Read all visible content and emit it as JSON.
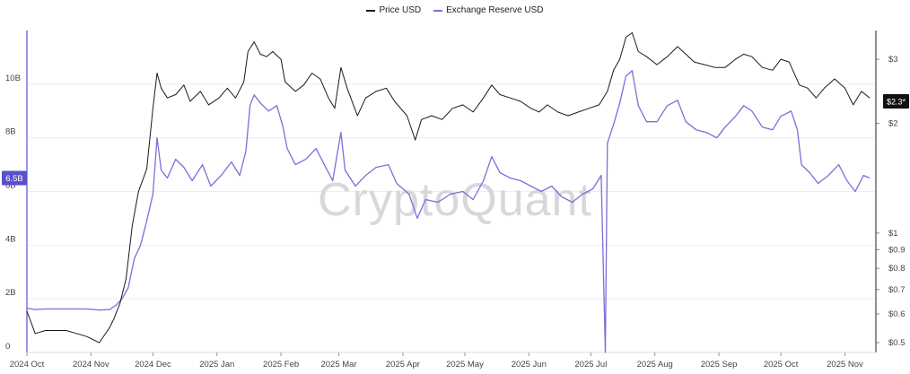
{
  "legend": {
    "price_label": "Price USD",
    "reserve_label": "Exchange Reserve USD"
  },
  "watermark": "CryptoQuant",
  "badges": {
    "left_value": "6.5B",
    "right_value": "$2.3*"
  },
  "colors": {
    "price": "#1a1a1a",
    "reserve": "#7b6fd6",
    "left_badge": "#5a4fcf",
    "right_badge": "#111111",
    "grid": "#eeeeee"
  },
  "chart_data": {
    "type": "line",
    "x_tick_labels": [
      "2024 Oct",
      "2024 Nov",
      "2024 Dec",
      "2025 Jan",
      "2025 Feb",
      "2025 Mar",
      "2025 Apr",
      "2025 May",
      "2025 Jun",
      "2025 Jul",
      "2025 Aug",
      "2025 Sep",
      "2025 Oct",
      "2025 Nov"
    ],
    "y_left_ticks": [
      "0",
      "2B",
      "4B",
      "6B",
      "8B",
      "10B"
    ],
    "y_left_range": [
      0,
      12
    ],
    "y_left_unit": "B USD",
    "y_right_ticks": [
      "$0.5",
      "$0.6",
      "$0.7",
      "$0.8",
      "$0.9",
      "$1",
      "$2",
      "$3"
    ],
    "y_right_scale": "log",
    "y_right_range": [
      0.47,
      3.6
    ],
    "grid": "horizontal",
    "legend_position": "top-center",
    "series": [
      {
        "name": "Price USD",
        "axis": "right",
        "points": [
          [
            "2024-10-01",
            0.61
          ],
          [
            "2024-10-05",
            0.53
          ],
          [
            "2024-10-10",
            0.54
          ],
          [
            "2024-10-15",
            0.54
          ],
          [
            "2024-10-20",
            0.54
          ],
          [
            "2024-10-25",
            0.53
          ],
          [
            "2024-10-30",
            0.52
          ],
          [
            "2024-11-05",
            0.5
          ],
          [
            "2024-11-10",
            0.55
          ],
          [
            "2024-11-12",
            0.58
          ],
          [
            "2024-11-15",
            0.64
          ],
          [
            "2024-11-18",
            0.75
          ],
          [
            "2024-11-21",
            1.05
          ],
          [
            "2024-11-24",
            1.3
          ],
          [
            "2024-11-28",
            1.5
          ],
          [
            "2024-12-01",
            2.2
          ],
          [
            "2024-12-03",
            2.75
          ],
          [
            "2024-12-05",
            2.5
          ],
          [
            "2024-12-08",
            2.35
          ],
          [
            "2024-12-12",
            2.4
          ],
          [
            "2024-12-16",
            2.55
          ],
          [
            "2024-12-19",
            2.3
          ],
          [
            "2024-12-24",
            2.45
          ],
          [
            "2024-12-28",
            2.25
          ],
          [
            "2025-01-02",
            2.35
          ],
          [
            "2025-01-06",
            2.5
          ],
          [
            "2025-01-10",
            2.35
          ],
          [
            "2025-01-14",
            2.6
          ],
          [
            "2025-01-16",
            3.15
          ],
          [
            "2025-01-19",
            3.35
          ],
          [
            "2025-01-22",
            3.1
          ],
          [
            "2025-01-25",
            3.05
          ],
          [
            "2025-01-28",
            3.15
          ],
          [
            "2025-02-01",
            3.0
          ],
          [
            "2025-02-03",
            2.6
          ],
          [
            "2025-02-08",
            2.45
          ],
          [
            "2025-02-12",
            2.55
          ],
          [
            "2025-02-16",
            2.75
          ],
          [
            "2025-02-20",
            2.65
          ],
          [
            "2025-02-24",
            2.35
          ],
          [
            "2025-02-27",
            2.2
          ],
          [
            "2025-03-02",
            2.85
          ],
          [
            "2025-03-05",
            2.5
          ],
          [
            "2025-03-10",
            2.1
          ],
          [
            "2025-03-14",
            2.35
          ],
          [
            "2025-03-19",
            2.45
          ],
          [
            "2025-03-24",
            2.5
          ],
          [
            "2025-03-28",
            2.3
          ],
          [
            "2025-04-03",
            2.1
          ],
          [
            "2025-04-07",
            1.8
          ],
          [
            "2025-04-10",
            2.05
          ],
          [
            "2025-04-15",
            2.1
          ],
          [
            "2025-04-20",
            2.05
          ],
          [
            "2025-04-25",
            2.2
          ],
          [
            "2025-04-30",
            2.25
          ],
          [
            "2025-05-05",
            2.15
          ],
          [
            "2025-05-10",
            2.35
          ],
          [
            "2025-05-14",
            2.55
          ],
          [
            "2025-05-18",
            2.4
          ],
          [
            "2025-05-23",
            2.35
          ],
          [
            "2025-05-28",
            2.3
          ],
          [
            "2025-06-02",
            2.2
          ],
          [
            "2025-06-06",
            2.15
          ],
          [
            "2025-06-10",
            2.25
          ],
          [
            "2025-06-15",
            2.15
          ],
          [
            "2025-06-20",
            2.1
          ],
          [
            "2025-06-25",
            2.15
          ],
          [
            "2025-06-30",
            2.2
          ],
          [
            "2025-07-05",
            2.25
          ],
          [
            "2025-07-09",
            2.45
          ],
          [
            "2025-07-12",
            2.8
          ],
          [
            "2025-07-15",
            3.0
          ],
          [
            "2025-07-18",
            3.45
          ],
          [
            "2025-07-21",
            3.55
          ],
          [
            "2025-07-24",
            3.15
          ],
          [
            "2025-07-28",
            3.05
          ],
          [
            "2025-08-02",
            2.9
          ],
          [
            "2025-08-07",
            3.05
          ],
          [
            "2025-08-12",
            3.25
          ],
          [
            "2025-08-16",
            3.1
          ],
          [
            "2025-08-20",
            2.95
          ],
          [
            "2025-08-25",
            2.9
          ],
          [
            "2025-08-30",
            2.85
          ],
          [
            "2025-09-04",
            2.85
          ],
          [
            "2025-09-09",
            3.0
          ],
          [
            "2025-09-13",
            3.1
          ],
          [
            "2025-09-17",
            3.05
          ],
          [
            "2025-09-22",
            2.85
          ],
          [
            "2025-09-27",
            2.8
          ],
          [
            "2025-10-01",
            3.0
          ],
          [
            "2025-10-05",
            2.95
          ],
          [
            "2025-10-10",
            2.55
          ],
          [
            "2025-10-14",
            2.5
          ],
          [
            "2025-10-18",
            2.35
          ],
          [
            "2025-10-22",
            2.5
          ],
          [
            "2025-10-27",
            2.65
          ],
          [
            "2025-11-01",
            2.5
          ],
          [
            "2025-11-05",
            2.25
          ],
          [
            "2025-11-09",
            2.45
          ],
          [
            "2025-11-13",
            2.35
          ]
        ]
      },
      {
        "name": "Exchange Reserve USD",
        "axis": "left",
        "points": [
          [
            "2024-10-01",
            1.65
          ],
          [
            "2024-10-05",
            1.6
          ],
          [
            "2024-10-10",
            1.62
          ],
          [
            "2024-10-20",
            1.62
          ],
          [
            "2024-10-30",
            1.62
          ],
          [
            "2024-11-05",
            1.58
          ],
          [
            "2024-11-10",
            1.6
          ],
          [
            "2024-11-13",
            1.75
          ],
          [
            "2024-11-16",
            2.0
          ],
          [
            "2024-11-19",
            2.4
          ],
          [
            "2024-11-22",
            3.5
          ],
          [
            "2024-11-25",
            4.0
          ],
          [
            "2024-11-28",
            4.9
          ],
          [
            "2024-12-01",
            5.9
          ],
          [
            "2024-12-03",
            8.0
          ],
          [
            "2024-12-05",
            6.8
          ],
          [
            "2024-12-08",
            6.5
          ],
          [
            "2024-12-12",
            7.2
          ],
          [
            "2024-12-16",
            6.9
          ],
          [
            "2024-12-20",
            6.4
          ],
          [
            "2024-12-25",
            7.0
          ],
          [
            "2024-12-29",
            6.2
          ],
          [
            "2025-01-03",
            6.6
          ],
          [
            "2025-01-08",
            7.1
          ],
          [
            "2025-01-12",
            6.6
          ],
          [
            "2025-01-15",
            7.5
          ],
          [
            "2025-01-17",
            9.2
          ],
          [
            "2025-01-19",
            9.6
          ],
          [
            "2025-01-22",
            9.3
          ],
          [
            "2025-01-26",
            9.0
          ],
          [
            "2025-01-30",
            9.2
          ],
          [
            "2025-02-02",
            8.4
          ],
          [
            "2025-02-04",
            7.6
          ],
          [
            "2025-02-08",
            7.0
          ],
          [
            "2025-02-13",
            7.2
          ],
          [
            "2025-02-18",
            7.6
          ],
          [
            "2025-02-22",
            7.0
          ],
          [
            "2025-02-26",
            6.4
          ],
          [
            "2025-03-02",
            8.2
          ],
          [
            "2025-03-04",
            6.8
          ],
          [
            "2025-03-09",
            6.2
          ],
          [
            "2025-03-14",
            6.6
          ],
          [
            "2025-03-19",
            6.9
          ],
          [
            "2025-03-25",
            7.0
          ],
          [
            "2025-03-29",
            6.3
          ],
          [
            "2025-04-04",
            5.9
          ],
          [
            "2025-04-08",
            5.0
          ],
          [
            "2025-04-12",
            5.7
          ],
          [
            "2025-04-18",
            5.6
          ],
          [
            "2025-04-24",
            5.9
          ],
          [
            "2025-04-30",
            6.0
          ],
          [
            "2025-05-05",
            5.7
          ],
          [
            "2025-05-10",
            6.4
          ],
          [
            "2025-05-14",
            7.3
          ],
          [
            "2025-05-18",
            6.7
          ],
          [
            "2025-05-23",
            6.5
          ],
          [
            "2025-05-28",
            6.4
          ],
          [
            "2025-06-02",
            6.2
          ],
          [
            "2025-06-07",
            6.0
          ],
          [
            "2025-06-12",
            6.2
          ],
          [
            "2025-06-17",
            5.8
          ],
          [
            "2025-06-22",
            5.6
          ],
          [
            "2025-06-27",
            5.9
          ],
          [
            "2025-07-02",
            6.1
          ],
          [
            "2025-07-06",
            6.6
          ],
          [
            "2025-07-08",
            0.0
          ],
          [
            "2025-07-09",
            7.8
          ],
          [
            "2025-07-12",
            8.5
          ],
          [
            "2025-07-15",
            9.3
          ],
          [
            "2025-07-18",
            10.3
          ],
          [
            "2025-07-21",
            10.5
          ],
          [
            "2025-07-24",
            9.2
          ],
          [
            "2025-07-28",
            8.6
          ],
          [
            "2025-08-02",
            8.6
          ],
          [
            "2025-08-07",
            9.2
          ],
          [
            "2025-08-12",
            9.4
          ],
          [
            "2025-08-16",
            8.6
          ],
          [
            "2025-08-21",
            8.3
          ],
          [
            "2025-08-26",
            8.2
          ],
          [
            "2025-08-31",
            8.0
          ],
          [
            "2025-09-04",
            8.4
          ],
          [
            "2025-09-09",
            8.8
          ],
          [
            "2025-09-13",
            9.2
          ],
          [
            "2025-09-17",
            9.0
          ],
          [
            "2025-09-22",
            8.4
          ],
          [
            "2025-09-27",
            8.3
          ],
          [
            "2025-10-01",
            8.8
          ],
          [
            "2025-10-06",
            9.0
          ],
          [
            "2025-10-09",
            8.3
          ],
          [
            "2025-10-11",
            7.0
          ],
          [
            "2025-10-15",
            6.7
          ],
          [
            "2025-10-19",
            6.3
          ],
          [
            "2025-10-24",
            6.6
          ],
          [
            "2025-10-29",
            7.0
          ],
          [
            "2025-11-02",
            6.4
          ],
          [
            "2025-11-06",
            6.0
          ],
          [
            "2025-11-10",
            6.6
          ],
          [
            "2025-11-13",
            6.5
          ]
        ]
      }
    ]
  }
}
